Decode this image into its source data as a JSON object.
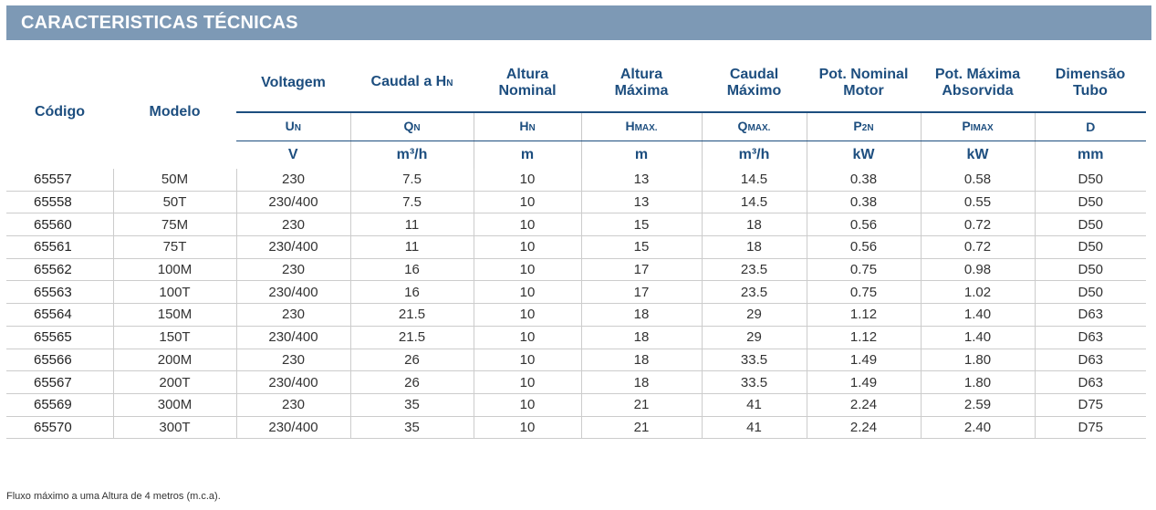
{
  "banner": {
    "title": "CARACTERISTICAS TÉCNICAS"
  },
  "headers": {
    "codigo": "Código",
    "modelo": "Modelo",
    "voltagem": "Voltagem",
    "caudal_hn": "Caudal a H",
    "caudal_hn_sub": "N",
    "altura_nominal_1": "Altura",
    "altura_nominal_2": "Nominal",
    "altura_maxima_1": "Altura",
    "altura_maxima_2": "Máxima",
    "caudal_max_1": "Caudal",
    "caudal_max_2": "Máximo",
    "pot_nominal_1": "Pot. Nominal",
    "pot_nominal_2": "Motor",
    "pot_maxima_1": "Pot. Máxima",
    "pot_maxima_2": "Absorvida",
    "dimensao_1": "Dimensão",
    "dimensao_2": "Tubo"
  },
  "symbols": [
    {
      "main": "U",
      "sub": "N"
    },
    {
      "main": "Q",
      "sub": "N"
    },
    {
      "main": "H",
      "sub": "N"
    },
    {
      "main": "H",
      "sub": "MAX."
    },
    {
      "main": "Q",
      "sub": "MAX."
    },
    {
      "main": "P",
      "sub": "2N"
    },
    {
      "main": "P",
      "sub": "IMAX"
    },
    {
      "main": "D",
      "sub": ""
    }
  ],
  "units": [
    "V",
    "m³/h",
    "m",
    "m",
    "m³/h",
    "kW",
    "kW",
    "mm"
  ],
  "rows": [
    {
      "codigo": "65557",
      "modelo": "50M",
      "voltagem": "230",
      "caudal": "7.5",
      "altura_nom": "10",
      "altura_max": "13",
      "caudal_max": "14.5",
      "pot_nom": "0.38",
      "pot_max": "0.58",
      "tubo": "D50"
    },
    {
      "codigo": "65558",
      "modelo": "50T",
      "voltagem": "230/400",
      "caudal": "7.5",
      "altura_nom": "10",
      "altura_max": "13",
      "caudal_max": "14.5",
      "pot_nom": "0.38",
      "pot_max": "0.55",
      "tubo": "D50"
    },
    {
      "codigo": "65560",
      "modelo": "75M",
      "voltagem": "230",
      "caudal": "11",
      "altura_nom": "10",
      "altura_max": "15",
      "caudal_max": "18",
      "pot_nom": "0.56",
      "pot_max": "0.72",
      "tubo": "D50"
    },
    {
      "codigo": "65561",
      "modelo": "75T",
      "voltagem": "230/400",
      "caudal": "11",
      "altura_nom": "10",
      "altura_max": "15",
      "caudal_max": "18",
      "pot_nom": "0.56",
      "pot_max": "0.72",
      "tubo": "D50"
    },
    {
      "codigo": "65562",
      "modelo": "100M",
      "voltagem": "230",
      "caudal": "16",
      "altura_nom": "10",
      "altura_max": "17",
      "caudal_max": "23.5",
      "pot_nom": "0.75",
      "pot_max": "0.98",
      "tubo": "D50"
    },
    {
      "codigo": "65563",
      "modelo": "100T",
      "voltagem": "230/400",
      "caudal": "16",
      "altura_nom": "10",
      "altura_max": "17",
      "caudal_max": "23.5",
      "pot_nom": "0.75",
      "pot_max": "1.02",
      "tubo": "D50"
    },
    {
      "codigo": "65564",
      "modelo": "150M",
      "voltagem": "230",
      "caudal": "21.5",
      "altura_nom": "10",
      "altura_max": "18",
      "caudal_max": "29",
      "pot_nom": "1.12",
      "pot_max": "1.40",
      "tubo": "D63"
    },
    {
      "codigo": "65565",
      "modelo": "150T",
      "voltagem": "230/400",
      "caudal": "21.5",
      "altura_nom": "10",
      "altura_max": "18",
      "caudal_max": "29",
      "pot_nom": "1.12",
      "pot_max": "1.40",
      "tubo": "D63"
    },
    {
      "codigo": "65566",
      "modelo": "200M",
      "voltagem": "230",
      "caudal": "26",
      "altura_nom": "10",
      "altura_max": "18",
      "caudal_max": "33.5",
      "pot_nom": "1.49",
      "pot_max": "1.80",
      "tubo": "D63"
    },
    {
      "codigo": "65567",
      "modelo": "200T",
      "voltagem": "230/400",
      "caudal": "26",
      "altura_nom": "10",
      "altura_max": "18",
      "caudal_max": "33.5",
      "pot_nom": "1.49",
      "pot_max": "1.80",
      "tubo": "D63"
    },
    {
      "codigo": "65569",
      "modelo": "300M",
      "voltagem": "230",
      "caudal": "35",
      "altura_nom": "10",
      "altura_max": "21",
      "caudal_max": "41",
      "pot_nom": "2.24",
      "pot_max": "2.59",
      "tubo": "D75"
    },
    {
      "codigo": "65570",
      "modelo": "300T",
      "voltagem": "230/400",
      "caudal": "35",
      "altura_nom": "10",
      "altura_max": "21",
      "caudal_max": "41",
      "pot_nom": "2.24",
      "pot_max": "2.40",
      "tubo": "D75"
    }
  ],
  "footnote": "Fluxo máximo a uma Altura de 4 metros (m.c.a).",
  "colors": {
    "banner": "#7d99b5",
    "header_text": "#1d4e7f",
    "body_text": "#333333"
  }
}
